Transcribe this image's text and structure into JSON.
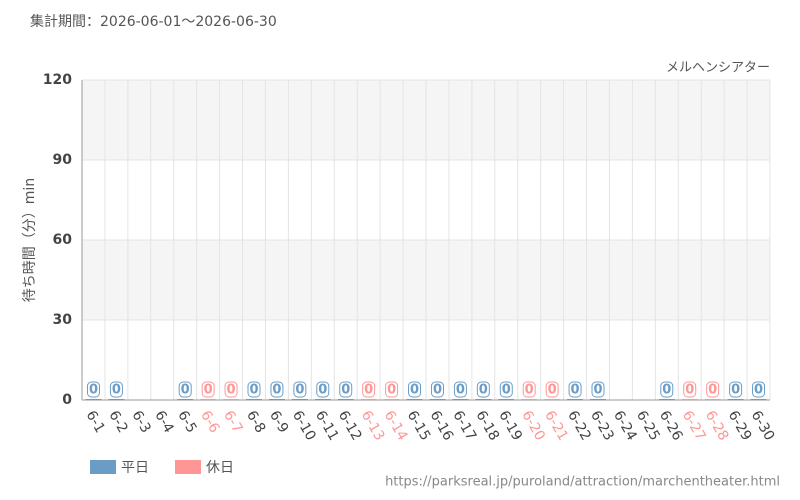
{
  "chart_data": {
    "type": "bar",
    "title": "集計期間：2026-06-01～2026-06-30",
    "subtitle": "メルヘンシアター",
    "y_label": "待ち時間（分）min",
    "source": "https://parksreal.jp/puroland/attraction/marchentheater.html",
    "categories": [
      "6-1",
      "6-2",
      "6-3",
      "6-4",
      "6-5",
      "6-6",
      "6-7",
      "6-8",
      "6-9",
      "6-10",
      "6-11",
      "6-12",
      "6-13",
      "6-14",
      "6-15",
      "6-16",
      "6-17",
      "6-18",
      "6-19",
      "6-20",
      "6-21",
      "6-22",
      "6-23",
      "6-24",
      "6-25",
      "6-26",
      "6-27",
      "6-28",
      "6-29",
      "6-30"
    ],
    "series": [
      {
        "name": "平日",
        "color": "#6a9cc6",
        "values": [
          0,
          0,
          null,
          null,
          0,
          null,
          null,
          0,
          0,
          0,
          0,
          0,
          null,
          null,
          0,
          0,
          0,
          0,
          0,
          null,
          null,
          0,
          0,
          null,
          null,
          0,
          null,
          null,
          0,
          0
        ]
      },
      {
        "name": "休日",
        "color": "#ff9696",
        "values": [
          null,
          null,
          null,
          null,
          null,
          0,
          0,
          null,
          null,
          null,
          null,
          null,
          0,
          0,
          null,
          null,
          null,
          null,
          null,
          0,
          0,
          null,
          null,
          null,
          null,
          null,
          0,
          0,
          null,
          null
        ]
      }
    ],
    "ylim": [
      0,
      120
    ],
    "yticks": [
      0,
      30,
      60,
      90,
      120
    ],
    "grid": true
  }
}
